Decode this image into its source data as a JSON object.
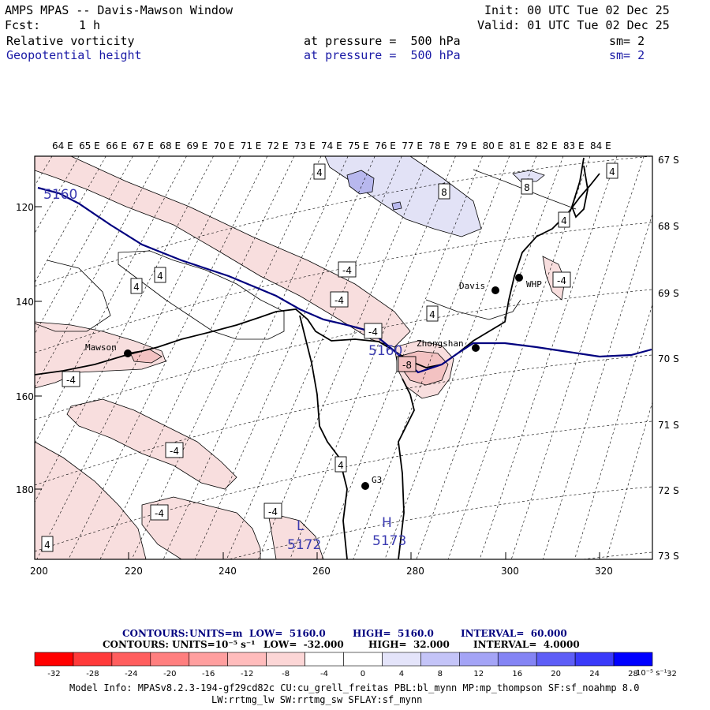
{
  "header": {
    "title": "AMPS MPAS -- Davis-Mawson Window",
    "fcst_label": "Fcst:",
    "fcst_value": "1 h",
    "init": "Init: 00 UTC Tue 02 Dec 25",
    "valid": "Valid: 01 UTC Tue 02 Dec 25",
    "field1": {
      "name": "Relative vorticity",
      "level": "at pressure =  500 hPa",
      "smooth": "sm= 2"
    },
    "field2": {
      "name": "Geopotential height",
      "level": "at pressure =  500 hPa",
      "smooth": "sm= 2"
    }
  },
  "map": {
    "lon_labels": [
      "64 E",
      "65 E",
      "66 E",
      "67 E",
      "68 E",
      "69 E",
      "70 E",
      "71 E",
      "72 E",
      "73 E",
      "74 E",
      "75 E",
      "76 E",
      "77 E",
      "78 E",
      "79 E",
      "80 E",
      "81 E",
      "82 E",
      "83 E",
      "84 E"
    ],
    "lat_labels": [
      "67 S",
      "68 S",
      "69 S",
      "70 S",
      "71 S",
      "72 S",
      "73 S"
    ],
    "x_ticks": [
      "200",
      "220",
      "240",
      "260",
      "280",
      "300",
      "320"
    ],
    "y_ticks": [
      "120",
      "140",
      "160",
      "180"
    ],
    "stations": [
      {
        "name": "Mawson"
      },
      {
        "name": "Davis"
      },
      {
        "name": "WHP"
      },
      {
        "name": "Zhongshan"
      },
      {
        "name": "G3"
      }
    ],
    "height_contour_labels": [
      "5160",
      "5160"
    ],
    "low": {
      "letter": "L",
      "value": "5172"
    },
    "high": {
      "letter": "H",
      "value": "5173"
    },
    "vorticity_labels": [
      "4",
      "4",
      "4",
      "4",
      "4",
      "4",
      "4",
      "4",
      "8",
      "8",
      "-4",
      "-4",
      "-4",
      "-4",
      "-4",
      "-4",
      "-4",
      "-4",
      "-4",
      "-8"
    ],
    "colors": {
      "height_contour": "#00007f",
      "negative_fill": "#f7d6d6",
      "positive_fill": "#dcdcf5"
    }
  },
  "footer": {
    "contours1_label": "CONTOURS:",
    "contours1_units": "UNITS=m",
    "contours1_low": "LOW=  5160.0",
    "contours1_high": "HIGH=  5160.0",
    "contours1_interval": "INTERVAL=  60.000",
    "contours2_label": "CONTOURS:",
    "contours2_units": "UNITS=10⁻⁵ s⁻¹",
    "contours2_low": "LOW=  -32.000",
    "contours2_high": "HIGH=  32.000",
    "contours2_interval": "INTERVAL=  4.0000",
    "colorbar_ticks": [
      "-32",
      "-28",
      "-24",
      "-20",
      "-16",
      "-12",
      "-8",
      "-4",
      "0",
      "4",
      "8",
      "12",
      "16",
      "20",
      "24",
      "28",
      "32"
    ],
    "colorbar_unit": "10⁻⁵ s⁻¹",
    "colorbar_colors": [
      "#ff0000",
      "#ff3a3a",
      "#ff5e5e",
      "#ff7f7f",
      "#ff9f9f",
      "#ffbcbc",
      "#fcd6d6",
      "#ffffff",
      "#ffffff",
      "#e4e4fa",
      "#c4c4f8",
      "#a4a4f6",
      "#8484f4",
      "#5e5ef7",
      "#3a3afa",
      "#0000ff"
    ],
    "model_info_1": "Model Info: MPASv8.2.3-194-gf29cd82c CU:cu_grell_freitas PBL:bl_mynn MP:mp_thompson SF:sf_noahmp 8.0",
    "model_info_2": "LW:rrtmg_lw SW:rrtmg_sw SFLAY:sf_mynn"
  }
}
